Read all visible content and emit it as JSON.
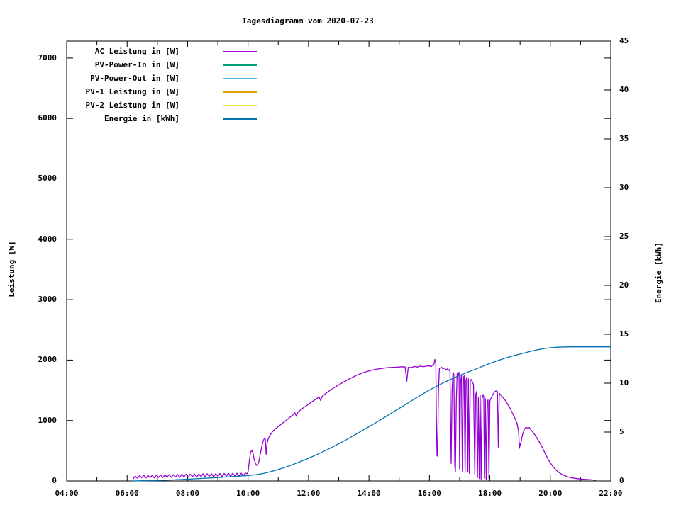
{
  "chart_data": {
    "type": "line",
    "title": "Tagesdiagramm vom 2020-07-23",
    "x_axis": {
      "unit": "time (HH:MM)",
      "range_hours": [
        4,
        22
      ],
      "major_tick_step_hours": 2,
      "minor_tick_step_hours": 1,
      "tick_labels": [
        "04:00",
        "06:00",
        "08:00",
        "10:00",
        "12:00",
        "14:00",
        "16:00",
        "18:00",
        "20:00",
        "22:00"
      ],
      "tick_hours": [
        4,
        6,
        8,
        10,
        12,
        14,
        16,
        18,
        20,
        22
      ]
    },
    "y_axis": {
      "label": "Leistung [W]",
      "range": [
        0,
        7280
      ],
      "tick_step": 1000,
      "ticks": [
        0,
        1000,
        2000,
        3000,
        4000,
        5000,
        6000,
        7000
      ],
      "tick_labels": [
        "0",
        "1000",
        "2000",
        "3000",
        "4000",
        "5000",
        "6000",
        "7000"
      ]
    },
    "y2_axis": {
      "label": "Energie [kWh]",
      "range": [
        0,
        45
      ],
      "tick_step": 5,
      "ticks": [
        0,
        5,
        10,
        15,
        20,
        25,
        30,
        35,
        40,
        45
      ],
      "tick_labels": [
        "0",
        "5",
        "10",
        "15",
        "20",
        "25",
        "30",
        "35",
        "40",
        "45"
      ]
    },
    "legend": {
      "position": "top-left-inside"
    },
    "grid": false,
    "series": [
      {
        "key": "ac-leistung",
        "name": "AC Leistung in [W]",
        "color": "#9400d3",
        "axis": "y",
        "points": [
          [
            6.2,
            35
          ],
          [
            6.27,
            80
          ],
          [
            6.34,
            45
          ],
          [
            6.41,
            88
          ],
          [
            6.48,
            52
          ],
          [
            6.55,
            92
          ],
          [
            6.62,
            48
          ],
          [
            6.69,
            90
          ],
          [
            6.76,
            55
          ],
          [
            6.83,
            95
          ],
          [
            6.9,
            50
          ],
          [
            6.97,
            98
          ],
          [
            7.04,
            58
          ],
          [
            7.11,
            100
          ],
          [
            7.18,
            55
          ],
          [
            7.25,
            102
          ],
          [
            7.32,
            62
          ],
          [
            7.39,
            105
          ],
          [
            7.46,
            58
          ],
          [
            7.53,
            106
          ],
          [
            7.6,
            65
          ],
          [
            7.67,
            108
          ],
          [
            7.74,
            60
          ],
          [
            7.81,
            110
          ],
          [
            7.88,
            68
          ],
          [
            7.95,
            112
          ],
          [
            8.02,
            62
          ],
          [
            8.09,
            112
          ],
          [
            8.16,
            70
          ],
          [
            8.23,
            115
          ],
          [
            8.3,
            65
          ],
          [
            8.37,
            115
          ],
          [
            8.44,
            72
          ],
          [
            8.51,
            118
          ],
          [
            8.58,
            68
          ],
          [
            8.65,
            118
          ],
          [
            8.72,
            75
          ],
          [
            8.79,
            120
          ],
          [
            8.86,
            70
          ],
          [
            8.93,
            120
          ],
          [
            9.0,
            78
          ],
          [
            9.07,
            122
          ],
          [
            9.14,
            72
          ],
          [
            9.21,
            122
          ],
          [
            9.28,
            80
          ],
          [
            9.35,
            125
          ],
          [
            9.42,
            75
          ],
          [
            9.49,
            125
          ],
          [
            9.56,
            82
          ],
          [
            9.63,
            128
          ],
          [
            9.7,
            78
          ],
          [
            9.77,
            128
          ],
          [
            9.84,
            85
          ],
          [
            9.91,
            130
          ],
          [
            9.97,
            120
          ],
          [
            10.0,
            150
          ],
          [
            10.04,
            320
          ],
          [
            10.08,
            470
          ],
          [
            10.12,
            505
          ],
          [
            10.16,
            470
          ],
          [
            10.2,
            360
          ],
          [
            10.25,
            285
          ],
          [
            10.3,
            255
          ],
          [
            10.35,
            300
          ],
          [
            10.4,
            430
          ],
          [
            10.45,
            560
          ],
          [
            10.5,
            660
          ],
          [
            10.54,
            705
          ],
          [
            10.57,
            690
          ],
          [
            10.6,
            440
          ],
          [
            10.63,
            620
          ],
          [
            10.67,
            700
          ],
          [
            10.72,
            750
          ],
          [
            10.8,
            810
          ],
          [
            10.9,
            860
          ],
          [
            11.0,
            900
          ],
          [
            11.2,
            980
          ],
          [
            11.4,
            1060
          ],
          [
            11.5,
            1100
          ],
          [
            11.55,
            1130
          ],
          [
            11.6,
            1070
          ],
          [
            11.65,
            1140
          ],
          [
            11.8,
            1200
          ],
          [
            12.0,
            1270
          ],
          [
            12.2,
            1340
          ],
          [
            12.35,
            1390
          ],
          [
            12.4,
            1330
          ],
          [
            12.45,
            1400
          ],
          [
            12.6,
            1460
          ],
          [
            12.8,
            1530
          ],
          [
            13.0,
            1590
          ],
          [
            13.2,
            1650
          ],
          [
            13.4,
            1700
          ],
          [
            13.6,
            1750
          ],
          [
            13.8,
            1790
          ],
          [
            14.0,
            1820
          ],
          [
            14.2,
            1845
          ],
          [
            14.4,
            1860
          ],
          [
            14.6,
            1875
          ],
          [
            14.8,
            1880
          ],
          [
            15.0,
            1885
          ],
          [
            15.1,
            1890
          ],
          [
            15.2,
            1885
          ],
          [
            15.25,
            1650
          ],
          [
            15.3,
            1880
          ],
          [
            15.4,
            1875
          ],
          [
            15.5,
            1895
          ],
          [
            15.6,
            1885
          ],
          [
            15.7,
            1900
          ],
          [
            15.8,
            1890
          ],
          [
            15.9,
            1900
          ],
          [
            16.0,
            1905
          ],
          [
            16.05,
            1890
          ],
          [
            16.1,
            1910
          ],
          [
            16.15,
            1930
          ],
          [
            16.18,
            2010
          ],
          [
            16.21,
            1960
          ],
          [
            16.23,
            1100
          ],
          [
            16.25,
            420
          ],
          [
            16.27,
            410
          ],
          [
            16.3,
            1500
          ],
          [
            16.33,
            1860
          ],
          [
            16.4,
            1880
          ],
          [
            16.45,
            1855
          ],
          [
            16.5,
            1870
          ],
          [
            16.55,
            1840
          ],
          [
            16.6,
            1855
          ],
          [
            16.65,
            1830
          ],
          [
            16.68,
            1850
          ],
          [
            16.72,
            290
          ],
          [
            16.75,
            1500
          ],
          [
            16.78,
            1800
          ],
          [
            16.81,
            1760
          ],
          [
            16.84,
            250
          ],
          [
            16.86,
            160
          ],
          [
            16.89,
            1350
          ],
          [
            16.92,
            1780
          ],
          [
            16.95,
            1740
          ],
          [
            16.98,
            1800
          ],
          [
            17.0,
            200
          ],
          [
            17.03,
            1620
          ],
          [
            17.06,
            1760
          ],
          [
            17.09,
            160
          ],
          [
            17.12,
            1700
          ],
          [
            17.15,
            1740
          ],
          [
            17.18,
            135
          ],
          [
            17.21,
            1660
          ],
          [
            17.24,
            1720
          ],
          [
            17.27,
            145
          ],
          [
            17.29,
            1690
          ],
          [
            17.32,
            125
          ],
          [
            17.35,
            1660
          ],
          [
            17.38,
            1680
          ],
          [
            17.42,
            1640
          ],
          [
            17.46,
            1600
          ],
          [
            17.5,
            105
          ],
          [
            17.53,
            1420
          ],
          [
            17.56,
            1480
          ],
          [
            17.59,
            55
          ],
          [
            17.62,
            1380
          ],
          [
            17.65,
            40
          ],
          [
            17.68,
            1420
          ],
          [
            17.71,
            30
          ],
          [
            17.74,
            1360
          ],
          [
            17.77,
            1430
          ],
          [
            17.8,
            1400
          ],
          [
            17.82,
            45
          ],
          [
            17.85,
            1360
          ],
          [
            17.88,
            28
          ],
          [
            17.91,
            1300
          ],
          [
            17.94,
            1340
          ],
          [
            17.97,
            40
          ],
          [
            18.0,
            1320
          ],
          [
            18.03,
            1360
          ],
          [
            18.07,
            1400
          ],
          [
            18.11,
            1440
          ],
          [
            18.15,
            1470
          ],
          [
            18.2,
            1490
          ],
          [
            18.25,
            1480
          ],
          [
            18.28,
            560
          ],
          [
            18.31,
            1450
          ],
          [
            18.35,
            1430
          ],
          [
            18.4,
            1400
          ],
          [
            18.45,
            1370
          ],
          [
            18.5,
            1340
          ],
          [
            18.55,
            1300
          ],
          [
            18.6,
            1260
          ],
          [
            18.65,
            1220
          ],
          [
            18.7,
            1170
          ],
          [
            18.75,
            1120
          ],
          [
            18.8,
            1070
          ],
          [
            18.85,
            1010
          ],
          [
            18.9,
            950
          ],
          [
            18.95,
            820
          ],
          [
            18.98,
            540
          ],
          [
            19.0,
            620
          ],
          [
            19.02,
            580
          ],
          [
            19.05,
            700
          ],
          [
            19.1,
            800
          ],
          [
            19.15,
            860
          ],
          [
            19.2,
            890
          ],
          [
            19.25,
            870
          ],
          [
            19.3,
            885
          ],
          [
            19.35,
            850
          ],
          [
            19.4,
            820
          ],
          [
            19.45,
            790
          ],
          [
            19.5,
            755
          ],
          [
            19.6,
            675
          ],
          [
            19.7,
            590
          ],
          [
            19.8,
            485
          ],
          [
            19.9,
            385
          ],
          [
            20.0,
            300
          ],
          [
            20.1,
            230
          ],
          [
            20.2,
            175
          ],
          [
            20.3,
            135
          ],
          [
            20.4,
            105
          ],
          [
            20.5,
            82
          ],
          [
            20.6,
            65
          ],
          [
            20.7,
            52
          ],
          [
            20.8,
            45
          ],
          [
            20.9,
            38
          ],
          [
            21.0,
            33
          ],
          [
            21.1,
            28
          ],
          [
            21.2,
            25
          ],
          [
            21.3,
            22
          ],
          [
            21.4,
            18
          ],
          [
            21.5,
            14
          ]
        ]
      },
      {
        "key": "pv-power-in",
        "name": "PV-Power-In in [W]",
        "color": "#009e73",
        "axis": "y",
        "note": "legend entry only, no curve visible in plot area",
        "points": []
      },
      {
        "key": "pv-power-out",
        "name": "PV-Power-Out in [W]",
        "color": "#56b4e9",
        "axis": "y",
        "note": "legend entry only, no curve visible in plot area",
        "points": []
      },
      {
        "key": "pv1-leistung",
        "name": "PV-1 Leistung in [W]",
        "color": "#e69f00",
        "axis": "y",
        "note": "legend entry only, no curve visible in plot area",
        "points": []
      },
      {
        "key": "pv2-leistung",
        "name": "PV-2 Leistung in [W]",
        "color": "#f0e442",
        "axis": "y",
        "note": "legend entry only, no curve visible in plot area",
        "points": []
      },
      {
        "key": "energie",
        "name": "Energie in [kWh]",
        "color": "#0072b2",
        "axis": "y2",
        "points": [
          [
            6.2,
            0
          ],
          [
            6.5,
            0.02
          ],
          [
            7.0,
            0.06
          ],
          [
            7.5,
            0.11
          ],
          [
            8.0,
            0.18
          ],
          [
            8.5,
            0.26
          ],
          [
            9.0,
            0.35
          ],
          [
            9.5,
            0.45
          ],
          [
            10.0,
            0.55
          ],
          [
            10.25,
            0.63
          ],
          [
            10.5,
            0.76
          ],
          [
            10.75,
            0.95
          ],
          [
            11.0,
            1.17
          ],
          [
            11.25,
            1.42
          ],
          [
            11.5,
            1.7
          ],
          [
            11.75,
            2.0
          ],
          [
            12.0,
            2.32
          ],
          [
            12.25,
            2.66
          ],
          [
            12.5,
            3.02
          ],
          [
            12.75,
            3.4
          ],
          [
            13.0,
            3.8
          ],
          [
            13.25,
            4.22
          ],
          [
            13.5,
            4.65
          ],
          [
            13.75,
            5.1
          ],
          [
            14.0,
            5.55
          ],
          [
            14.25,
            6.0
          ],
          [
            14.5,
            6.47
          ],
          [
            14.75,
            6.95
          ],
          [
            15.0,
            7.42
          ],
          [
            15.25,
            7.9
          ],
          [
            15.5,
            8.37
          ],
          [
            15.75,
            8.84
          ],
          [
            16.0,
            9.3
          ],
          [
            16.25,
            9.7
          ],
          [
            16.5,
            10.1
          ],
          [
            16.75,
            10.45
          ],
          [
            17.0,
            10.8
          ],
          [
            17.25,
            11.1
          ],
          [
            17.5,
            11.4
          ],
          [
            17.75,
            11.72
          ],
          [
            18.0,
            12.02
          ],
          [
            18.25,
            12.3
          ],
          [
            18.5,
            12.55
          ],
          [
            18.75,
            12.78
          ],
          [
            19.0,
            12.98
          ],
          [
            19.25,
            13.18
          ],
          [
            19.5,
            13.37
          ],
          [
            19.75,
            13.52
          ],
          [
            20.0,
            13.62
          ],
          [
            20.25,
            13.68
          ],
          [
            20.5,
            13.71
          ],
          [
            20.75,
            13.72
          ],
          [
            21.0,
            13.72
          ],
          [
            22.0,
            13.72
          ]
        ]
      }
    ]
  }
}
